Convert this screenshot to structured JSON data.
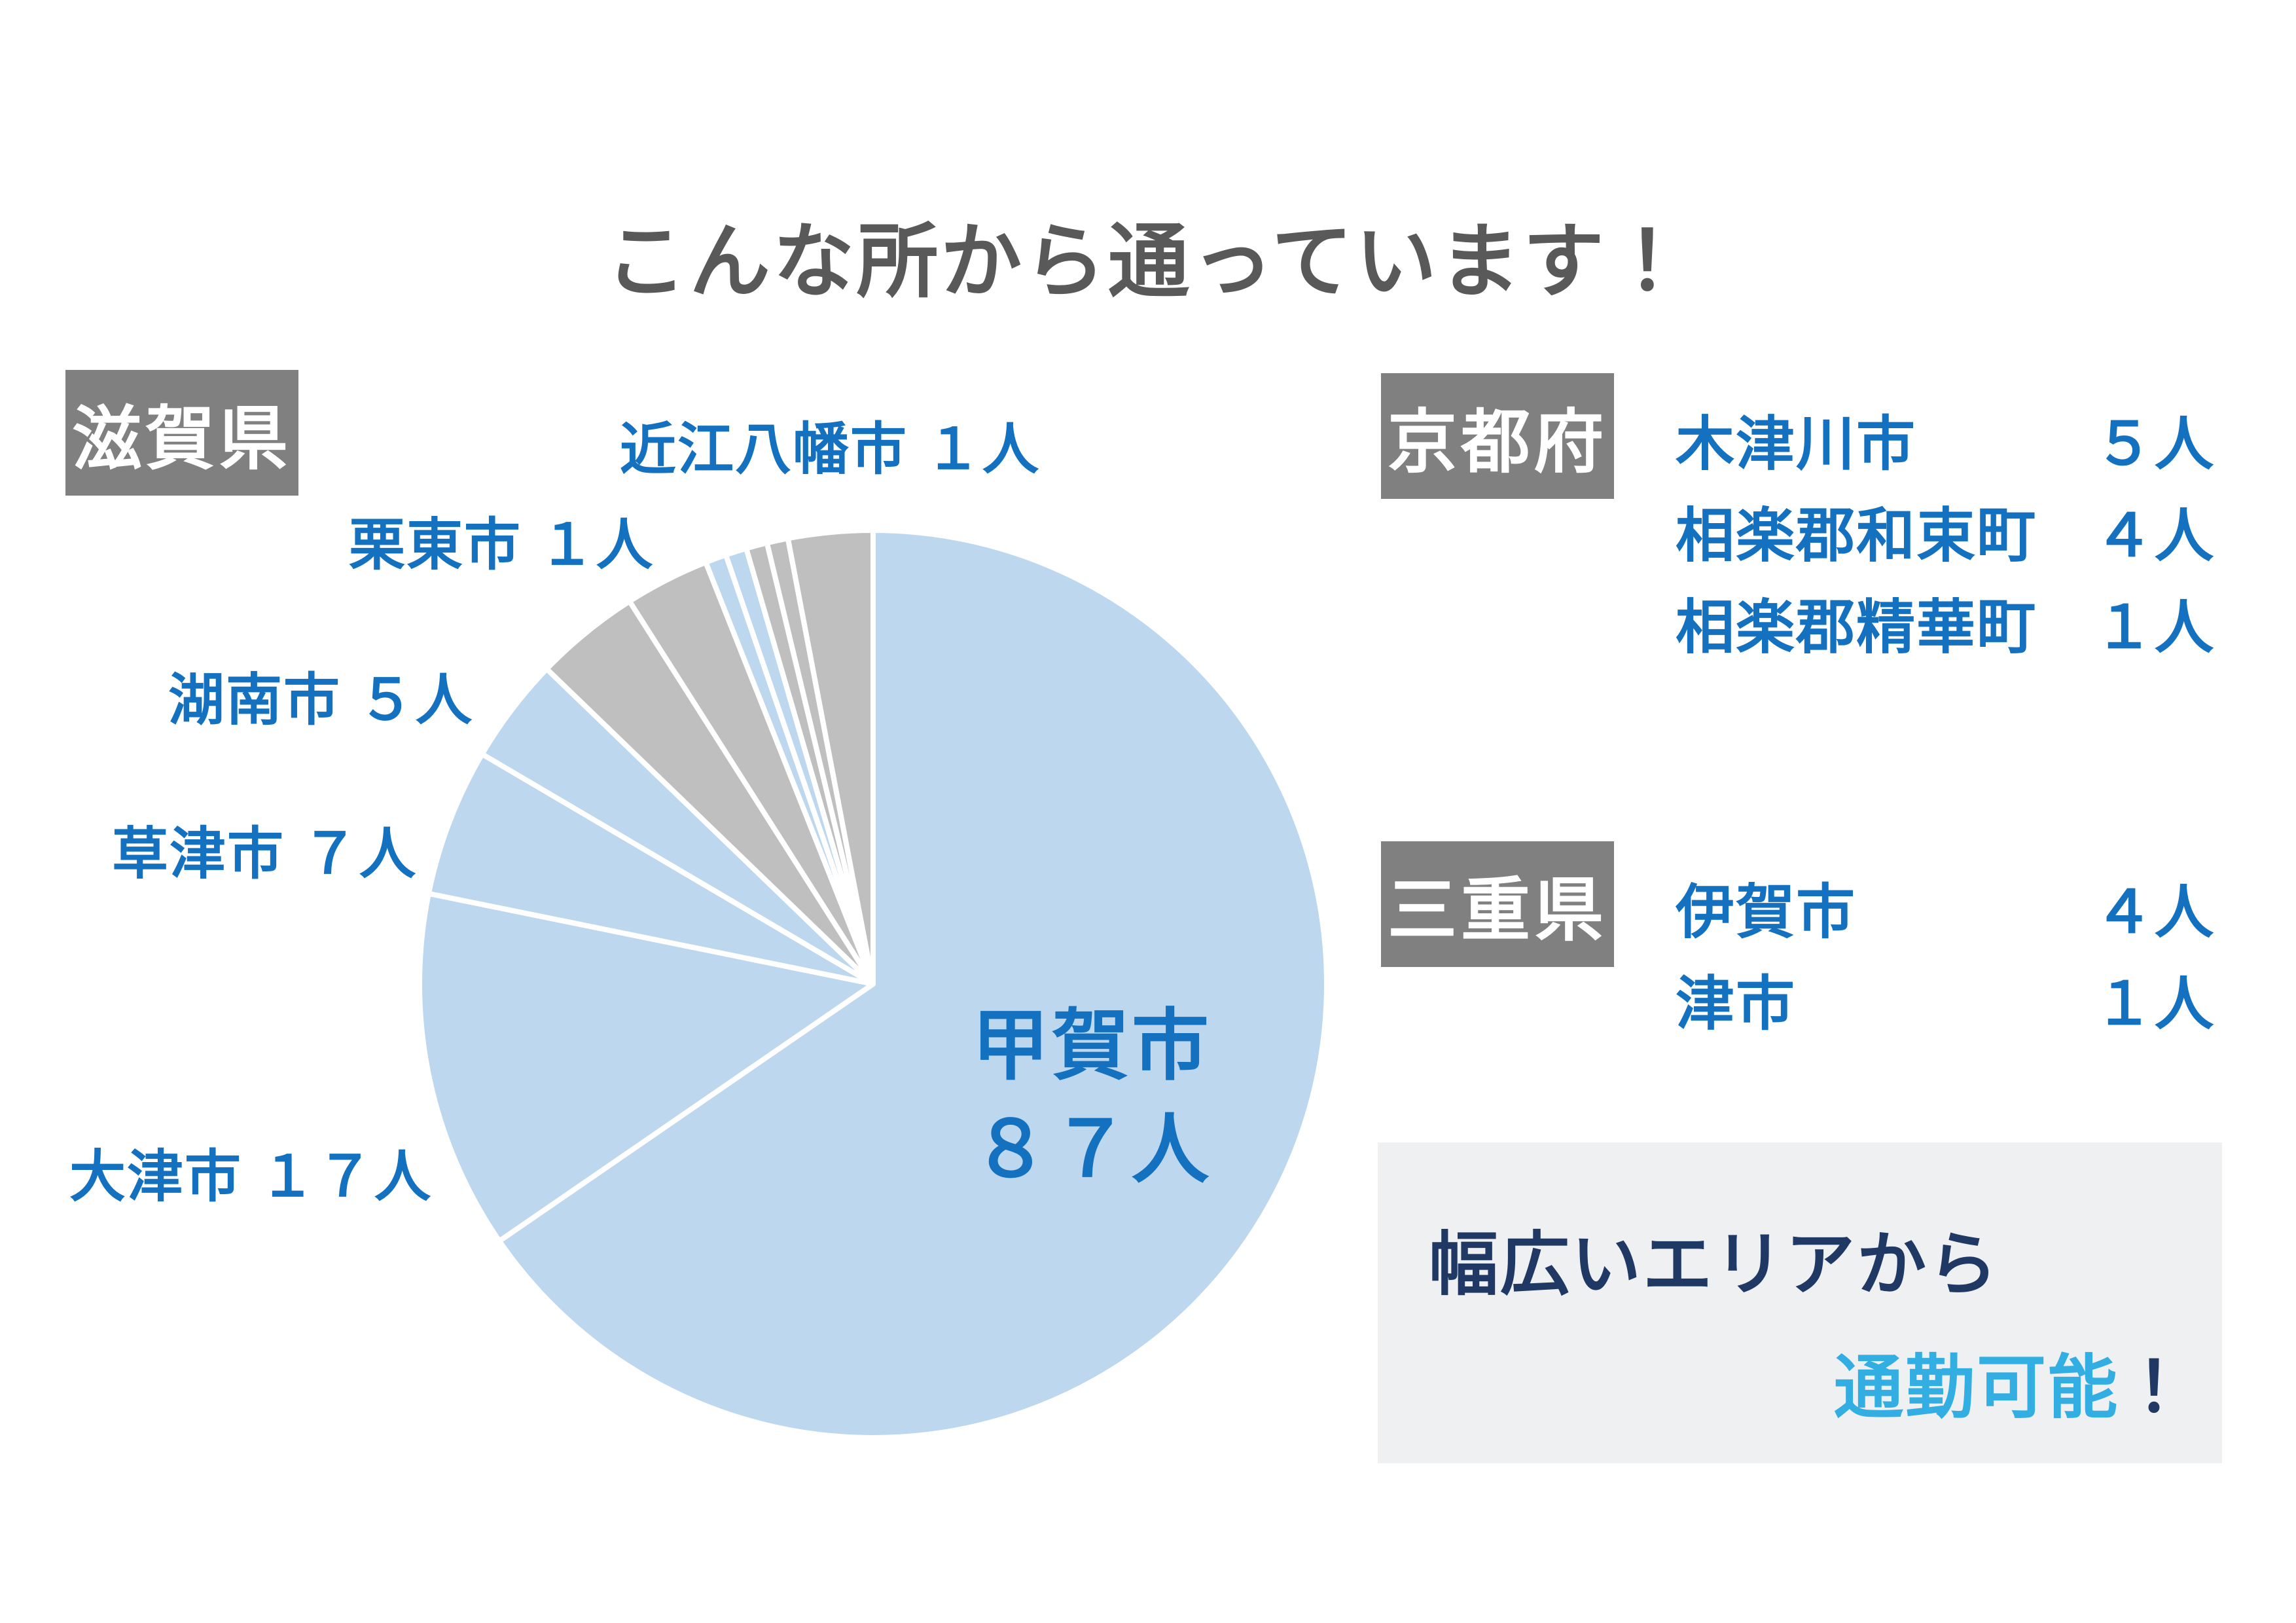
{
  "title": "こんな所から通っています！",
  "colors": {
    "title_gray": "#595959",
    "badge_gray": "#808080",
    "label_blue": "#1371BF",
    "pie_blue": "#BDD7EE",
    "pie_gray": "#BFBFBF",
    "separator_white": "#FFFFFF",
    "highlight_box_bg": "#EEF0F2",
    "highlight_navy": "#1F3864",
    "highlight_cyan": "#33AEE3"
  },
  "chart_data": {
    "type": "pie",
    "title": "こんな所から通っています！",
    "total": 133,
    "start_angle_deg": 0,
    "direction": "clockwise",
    "legend_position": "none",
    "separator_color": "#FFFFFF",
    "slices": [
      {
        "label": "甲賀市",
        "value": 87,
        "prefecture": "滋賀県",
        "color": "#BDD7EE"
      },
      {
        "label": "大津市",
        "value": 17,
        "prefecture": "滋賀県",
        "color": "#BDD7EE"
      },
      {
        "label": "草津市",
        "value": 7,
        "prefecture": "滋賀県",
        "color": "#BDD7EE"
      },
      {
        "label": "湖南市",
        "value": 5,
        "prefecture": "滋賀県",
        "color": "#BDD7EE"
      },
      {
        "label": "木津川市",
        "value": 5,
        "prefecture": "京都府",
        "color": "#BFBFBF"
      },
      {
        "label": "相楽郡和束町",
        "value": 4,
        "prefecture": "京都府",
        "color": "#BFBFBF"
      },
      {
        "label": "栗東市",
        "value": 1,
        "prefecture": "滋賀県",
        "color": "#BDD7EE"
      },
      {
        "label": "近江八幡市",
        "value": 1,
        "prefecture": "滋賀県",
        "color": "#BDD7EE"
      },
      {
        "label": "相楽郡精華町",
        "value": 1,
        "prefecture": "京都府",
        "color": "#BFBFBF"
      },
      {
        "label": "津市",
        "value": 1,
        "prefecture": "三重県",
        "color": "#BFBFBF"
      },
      {
        "label": "伊賀市",
        "value": 4,
        "prefecture": "三重県",
        "color": "#BFBFBF"
      }
    ]
  },
  "pie_callouts": {
    "omihachiman": "近江八幡市 １人",
    "ritto": "栗東市 １人",
    "konan": "湖南市 ５人",
    "kusatsu": "草津市 ７人",
    "otsu": "大津市 １７人",
    "center_line1": "甲賀市",
    "center_line2": "８７人"
  },
  "shiga": {
    "badge": "滋賀県"
  },
  "kyoto": {
    "badge": "京都府",
    "rows": [
      {
        "city": "木津川市",
        "count": "５人"
      },
      {
        "city": "相楽郡和束町",
        "count": "４人"
      },
      {
        "city": "相楽郡精華町",
        "count": "１人"
      }
    ]
  },
  "mie": {
    "badge": "三重県",
    "rows": [
      {
        "city": "伊賀市",
        "count": "４人"
      },
      {
        "city": "津市",
        "count": "１人"
      }
    ]
  },
  "highlight": {
    "line1": "幅広いエリアから",
    "line2_accent": "通勤可能",
    "line2_suffix": "！"
  }
}
